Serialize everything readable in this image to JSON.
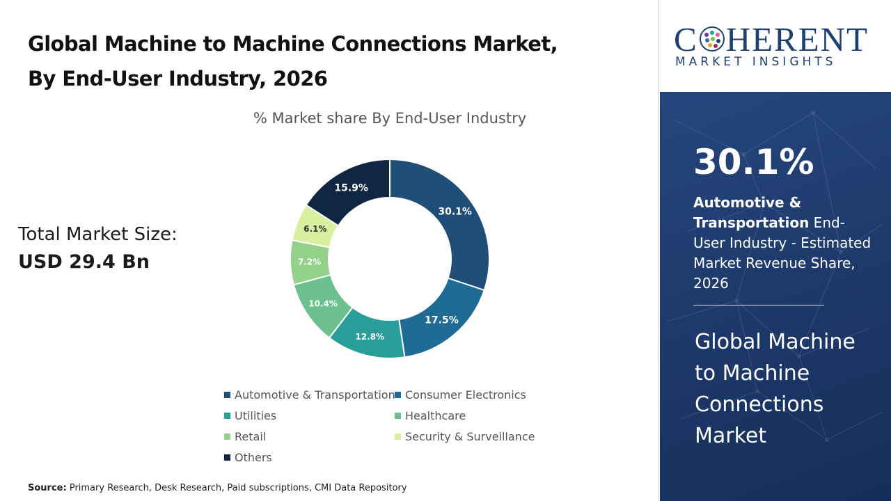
{
  "title": {
    "line1": "Global Machine to Machine Connections Market,",
    "line2": "By End-User Industry, 2026"
  },
  "total": {
    "label": "Total Market Size:",
    "value": "USD 29.4 Bn"
  },
  "source": {
    "label": "Source:",
    "text": "Primary Research, Desk Research, Paid subscriptions, CMI Data Repository"
  },
  "logo": {
    "word_start": "C",
    "word_end": "HERENT",
    "subtitle": "MARKET INSIGHTS"
  },
  "highlight": {
    "value": "30.1%",
    "segment_bold": "Automotive & Transportation",
    "description": " End-User Industry - Estimated Market Revenue Share, 2026",
    "market_name": "Global Machine to Machine Connections Market"
  },
  "chart_data": {
    "type": "pie",
    "donut": true,
    "title": "% Market share By End-User Industry",
    "legend_position": "bottom",
    "categories": [
      "Automotive & Transportation",
      "Consumer Electronics",
      "Utilities",
      "Healthcare",
      "Retail",
      "Security & Surveillance",
      "Others"
    ],
    "values": [
      30.1,
      17.5,
      12.8,
      10.4,
      7.2,
      6.1,
      15.9
    ],
    "labels": [
      "30.1%",
      "17.5%",
      "12.8%",
      "10.4%",
      "7.2%",
      "6.1%",
      "15.9%"
    ],
    "colors": [
      "#1f4e79",
      "#1e6b96",
      "#2a9d9a",
      "#6cc08e",
      "#94d18a",
      "#d9f0a0",
      "#0f2743"
    ],
    "label_colors": [
      "#ffffff",
      "#ffffff",
      "#ffffff",
      "#ffffff",
      "#ffffff",
      "#333333",
      "#ffffff"
    ]
  }
}
